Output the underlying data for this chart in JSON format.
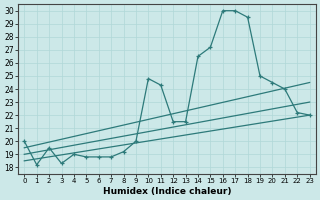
{
  "xlabel": "Humidex (Indice chaleur)",
  "background_color": "#cce8e8",
  "line_color": "#2d7a7a",
  "xlim": [
    -0.5,
    23.5
  ],
  "ylim": [
    17.5,
    30.5
  ],
  "yticks": [
    18,
    19,
    20,
    21,
    22,
    23,
    24,
    25,
    26,
    27,
    28,
    29,
    30
  ],
  "xticks": [
    0,
    1,
    2,
    3,
    4,
    5,
    6,
    7,
    8,
    9,
    10,
    11,
    12,
    13,
    14,
    15,
    16,
    17,
    18,
    19,
    20,
    21,
    22,
    23
  ],
  "curve_x": [
    0,
    1,
    2,
    3,
    4,
    5,
    6,
    7,
    8,
    9,
    10,
    11,
    12,
    13,
    14,
    15,
    16,
    17,
    18,
    19,
    20,
    21,
    22,
    23
  ],
  "curve_y": [
    20.0,
    18.2,
    19.5,
    18.3,
    19.0,
    18.8,
    18.8,
    18.8,
    19.2,
    20.0,
    24.8,
    24.3,
    21.5,
    21.5,
    26.5,
    27.2,
    30.0,
    30.0,
    29.5,
    25.0,
    24.5,
    24.0,
    22.2,
    22.0
  ],
  "line1_x": [
    0,
    23
  ],
  "line1_y": [
    19.5,
    24.5
  ],
  "line2_x": [
    0,
    23
  ],
  "line2_y": [
    19.0,
    23.0
  ],
  "line3_x": [
    0,
    23
  ],
  "line3_y": [
    18.5,
    22.0
  ],
  "grid_color": "#b0d8d8"
}
